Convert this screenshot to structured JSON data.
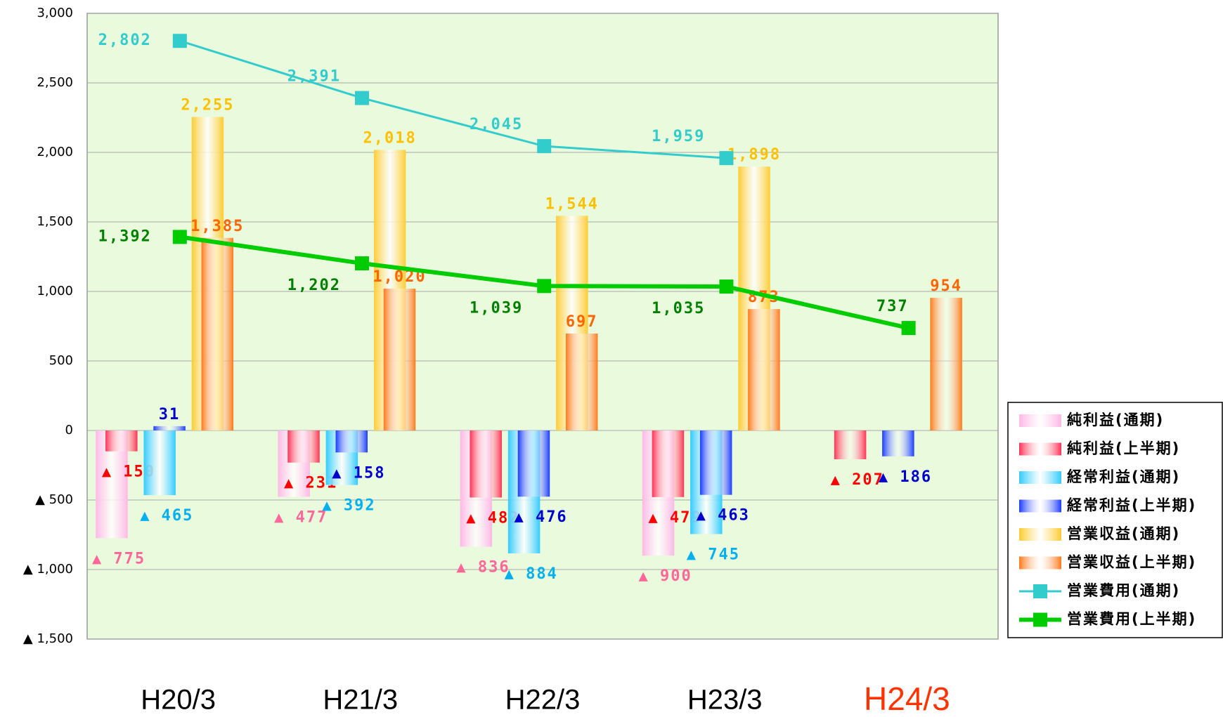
{
  "chart_data": {
    "type": "bar",
    "categories": [
      "H20/3",
      "H21/3",
      "H22/3",
      "H23/3",
      "H24/3"
    ],
    "category_colors": [
      "#000000",
      "#000000",
      "#000000",
      "#000000",
      "#ff3300"
    ],
    "ylim": [
      -1500,
      3000
    ],
    "yticks": [
      {
        "value": -1500,
        "label": "▲ 1,500"
      },
      {
        "value": -1000,
        "label": "▲ 1,000"
      },
      {
        "value": -500,
        "label": "▲ 500"
      },
      0,
      500,
      {
        "value": 1000,
        "label": "1,000"
      },
      {
        "value": 1500,
        "label": "1,500"
      },
      {
        "value": 2000,
        "label": "2,000"
      },
      {
        "value": 2500,
        "label": "2,500"
      },
      {
        "value": 3000,
        "label": "3,000"
      }
    ],
    "grid": true,
    "legend": "right",
    "series": [
      {
        "name": "純利益(通期)",
        "type": "bar",
        "color": "#ffb8e6",
        "label_color": "#ff6699",
        "values": [
          -775,
          -477,
          -836,
          -900,
          null
        ],
        "value_labels": [
          "▲ 775",
          "▲ 477",
          "▲ 836",
          "▲ 900",
          null
        ]
      },
      {
        "name": "純利益(上半期)",
        "type": "bar",
        "color": "#ff3355",
        "label_color": "#ff0000",
        "values": [
          -150,
          -231,
          -482,
          -479,
          -207
        ],
        "value_labels": [
          "▲ 150",
          "▲ 231",
          "▲ 482",
          "▲ 479",
          "▲ 207"
        ]
      },
      {
        "name": "経常利益(通期)",
        "type": "bar",
        "color": "#33ccff",
        "label_color": "#00b0f0",
        "values": [
          -465,
          -392,
          -884,
          -745,
          null
        ],
        "value_labels": [
          "▲ 465",
          "▲ 392",
          "▲ 884",
          "▲ 745",
          null
        ]
      },
      {
        "name": "経常利益(上半期)",
        "type": "bar",
        "color": "#1a3cff",
        "label_color": "#0000cc",
        "values": [
          31,
          -158,
          -476,
          -463,
          -186
        ],
        "value_labels": [
          "31",
          "▲ 158",
          "▲ 476",
          "▲ 463",
          "▲ 186"
        ]
      },
      {
        "name": "営業収益(通期)",
        "type": "bar",
        "color": "#ffcc33",
        "label_color": "#ffc000",
        "values": [
          2255,
          2018,
          1544,
          1898,
          null
        ],
        "value_labels": [
          "2,255",
          "2,018",
          "1,544",
          "1,898",
          null
        ]
      },
      {
        "name": "営業収益(上半期)",
        "type": "bar",
        "color": "#ff7a1a",
        "label_color": "#ff6600",
        "values": [
          1385,
          1020,
          697,
          873,
          954
        ],
        "value_labels": [
          "1,385",
          "1,020",
          "697",
          "873",
          "954"
        ]
      },
      {
        "name": "営業費用(通期)",
        "type": "line",
        "color": "#33cccc",
        "label_color": "#33cccc",
        "values": [
          2802,
          2391,
          2045,
          1959,
          null
        ],
        "value_labels": [
          "2,802",
          "2,391",
          "2,045",
          "1,959",
          null
        ]
      },
      {
        "name": "営業費用(上半期)",
        "type": "line",
        "color": "#00cc00",
        "label_color": "#008000",
        "values": [
          1392,
          1202,
          1039,
          1035,
          737
        ],
        "value_labels": [
          "1,392",
          "1,202",
          "1,039",
          "1,035",
          "737"
        ]
      }
    ]
  }
}
